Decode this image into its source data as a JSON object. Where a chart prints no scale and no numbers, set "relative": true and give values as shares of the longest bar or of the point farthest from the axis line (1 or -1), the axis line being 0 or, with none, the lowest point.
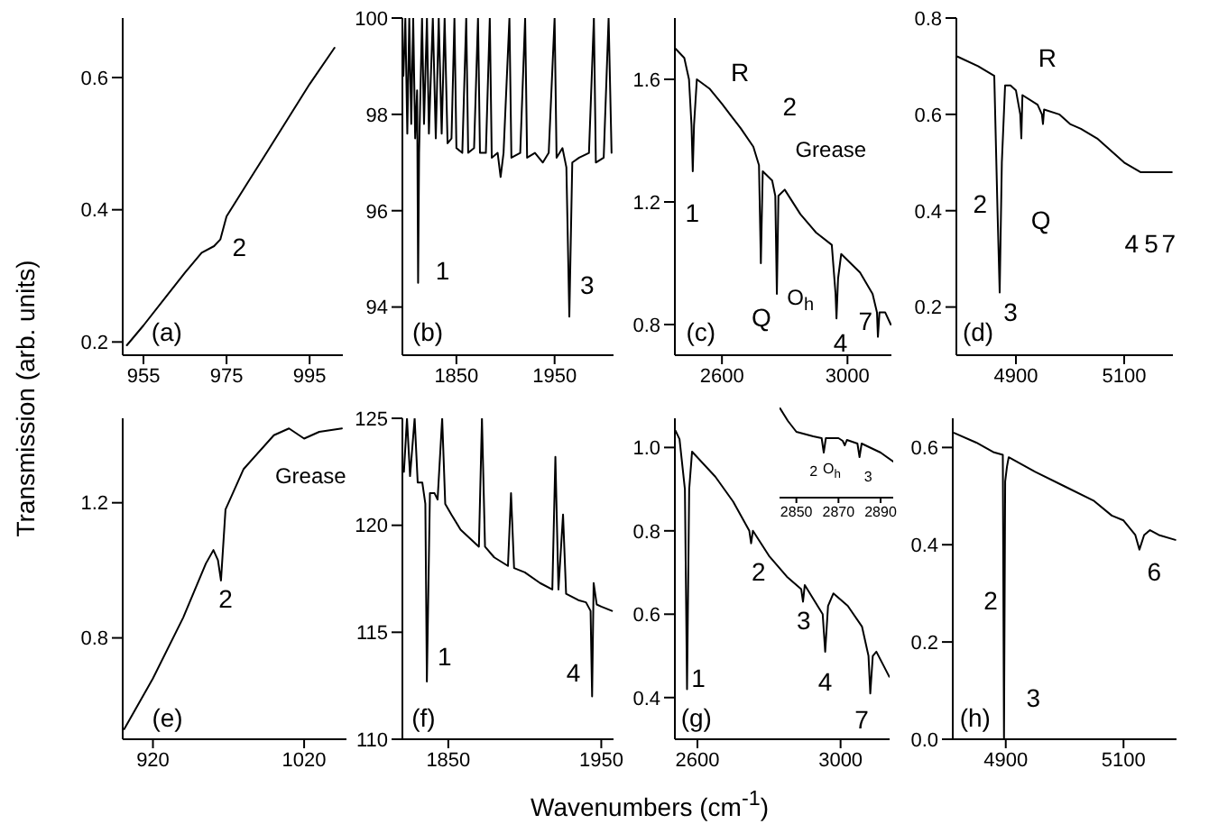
{
  "chart_data": [
    {
      "type": "line",
      "color": "#000000",
      "ylabel": "Transmission (arb. units)",
      "xlim": [
        950,
        1003
      ],
      "xticks": [
        955,
        975,
        995
      ],
      "ylim": [
        0.18,
        0.69
      ],
      "yticks": [
        0.2,
        0.4,
        0.6
      ],
      "x": [
        951,
        955,
        960,
        965,
        969,
        972,
        973.5,
        975,
        980,
        985,
        990,
        995,
        1001
      ],
      "values": [
        0.195,
        0.225,
        0.265,
        0.305,
        0.335,
        0.345,
        0.355,
        0.39,
        0.44,
        0.49,
        0.54,
        0.59,
        0.645
      ],
      "annotations": [
        "(a)",
        "2"
      ]
    },
    {
      "type": "line",
      "color": "#000000",
      "xlim": [
        1795,
        2010
      ],
      "xticks": [
        1850,
        1950
      ],
      "ylim": [
        93,
        100
      ],
      "yticks": [
        94,
        96,
        98,
        100
      ],
      "x": [
        1796,
        1798,
        1800,
        1802,
        1804,
        1806,
        1808,
        1810,
        1811,
        1812,
        1815,
        1817,
        1820,
        1822,
        1826,
        1829,
        1832,
        1835,
        1838,
        1841,
        1845,
        1848,
        1850,
        1856,
        1860,
        1862,
        1868,
        1872,
        1874,
        1880,
        1884,
        1886,
        1892,
        1895,
        1898,
        1904,
        1906,
        1915,
        1920,
        1922,
        1930,
        1938,
        1944,
        1950,
        1952,
        1958,
        1962,
        1965,
        1968,
        1975,
        1985,
        1990,
        1992,
        2000,
        2005,
        2008
      ],
      "values": [
        98.8,
        100,
        97.6,
        100,
        97.8,
        100,
        97.5,
        98.5,
        94.5,
        97.2,
        100,
        97.8,
        100,
        97.6,
        100,
        97.5,
        100,
        97.6,
        100,
        97.4,
        97.5,
        100,
        97.3,
        97.2,
        100,
        97.2,
        97.3,
        100,
        97.2,
        97.2,
        100,
        97.1,
        97.2,
        96.7,
        97.2,
        100,
        97.1,
        97.2,
        100,
        97.1,
        97.2,
        97.0,
        97.2,
        100,
        97.1,
        97.3,
        96.9,
        93.8,
        97.0,
        97.1,
        97.2,
        100,
        97.0,
        97.1,
        100,
        97.2
      ],
      "annotations": [
        "(b)",
        "1",
        "3"
      ]
    },
    {
      "type": "line",
      "color": "#000000",
      "xlim": [
        2450,
        3140
      ],
      "xticks": [
        2600,
        3000
      ],
      "ylim": [
        0.7,
        1.8
      ],
      "yticks": [
        0.8,
        1.2,
        1.6
      ],
      "x": [
        2452,
        2480,
        2495,
        2503,
        2507,
        2511,
        2520,
        2560,
        2600,
        2630,
        2660,
        2700,
        2718,
        2724,
        2730,
        2760,
        2770,
        2775,
        2780,
        2800,
        2850,
        2900,
        2950,
        2962,
        2965,
        2970,
        2980,
        3040,
        3080,
        3094,
        3097,
        3102,
        3120,
        3138
      ],
      "values": [
        1.7,
        1.67,
        1.6,
        1.45,
        1.3,
        1.45,
        1.6,
        1.57,
        1.52,
        1.48,
        1.44,
        1.38,
        1.32,
        1.0,
        1.3,
        1.27,
        1.22,
        0.9,
        1.22,
        1.24,
        1.16,
        1.1,
        1.06,
        0.9,
        0.82,
        0.95,
        1.03,
        0.97,
        0.9,
        0.84,
        0.76,
        0.84,
        0.84,
        0.8
      ],
      "annotations": [
        "(c)",
        "1",
        "R",
        "2",
        "Grease",
        "Q",
        "O$_{h}$",
        "4",
        "7"
      ]
    },
    {
      "type": "line",
      "color": "#000000",
      "xlim": [
        4790,
        5190
      ],
      "xticks": [
        4900,
        5100
      ],
      "ylim": [
        0.1,
        0.8
      ],
      "yticks": [
        0.2,
        0.4,
        0.6,
        0.8
      ],
      "x": [
        4792,
        4830,
        4860,
        4866,
        4870,
        4874,
        4880,
        4890,
        4900,
        4908,
        4910,
        4912,
        4940,
        4948,
        4950,
        4952,
        4980,
        5000,
        5020,
        5050,
        5100,
        5130,
        5150,
        5188
      ],
      "values": [
        0.72,
        0.7,
        0.68,
        0.4,
        0.23,
        0.5,
        0.66,
        0.66,
        0.65,
        0.6,
        0.55,
        0.64,
        0.62,
        0.6,
        0.58,
        0.61,
        0.6,
        0.58,
        0.57,
        0.55,
        0.5,
        0.48,
        0.48,
        0.48
      ],
      "annotations": [
        "(d)",
        "R",
        "Q",
        "2",
        "3",
        "4",
        "5",
        "7"
      ]
    },
    {
      "type": "line",
      "color": "#000000",
      "xlim": [
        900,
        1048
      ],
      "xticks": [
        920,
        1020
      ],
      "ylim": [
        0.5,
        1.45
      ],
      "yticks": [
        0.8,
        1.2
      ],
      "x": [
        901,
        920,
        940,
        955,
        960,
        963,
        965,
        968,
        980,
        1000,
        1010,
        1020,
        1030,
        1045
      ],
      "values": [
        0.53,
        0.68,
        0.86,
        1.02,
        1.06,
        1.03,
        0.97,
        1.18,
        1.3,
        1.4,
        1.42,
        1.39,
        1.41,
        1.42
      ],
      "annotations": [
        "(e)",
        "2",
        "Grease"
      ]
    },
    {
      "type": "line",
      "color": "#000000",
      "xlabel": "Wavenumbers (cm$^{-1}$)",
      "xlim": [
        1820,
        1958
      ],
      "xticks": [
        1850,
        1950
      ],
      "ylim": [
        110,
        125
      ],
      "yticks": [
        110,
        115,
        120,
        125
      ],
      "x": [
        1821,
        1823,
        1825,
        1828,
        1830,
        1833,
        1835,
        1836,
        1838,
        1841,
        1843,
        1846,
        1848,
        1852,
        1858,
        1870,
        1872,
        1874,
        1880,
        1889,
        1891,
        1893,
        1900,
        1910,
        1918,
        1920,
        1922,
        1925,
        1927,
        1935,
        1940,
        1943,
        1944,
        1945,
        1947,
        1950,
        1957
      ],
      "values": [
        122.5,
        125,
        122.3,
        125,
        122,
        122,
        121,
        112.7,
        121.5,
        121.5,
        121.2,
        125,
        121,
        120.5,
        119.8,
        119,
        125,
        119,
        118.5,
        118.1,
        121.5,
        118,
        117.8,
        117.3,
        117,
        123.2,
        117,
        120.5,
        116.8,
        116.5,
        116.4,
        116,
        112,
        117.3,
        116.3,
        116.2,
        116
      ],
      "annotations": [
        "(f)",
        "1",
        "4"
      ]
    },
    {
      "type": "line",
      "color": "#000000",
      "xlim": [
        2537,
        3137
      ],
      "xticks": [
        2600,
        3000
      ],
      "ylim": [
        0.3,
        1.07
      ],
      "yticks": [
        0.4,
        0.6,
        0.8,
        {
          "value": 1,
          "label": "1.0"
        }
      ],
      "x": [
        2539,
        2550,
        2565,
        2571,
        2577,
        2585,
        2650,
        2700,
        2745,
        2750,
        2755,
        2800,
        2850,
        2890,
        2895,
        2900,
        2950,
        2957,
        2965,
        2980,
        3020,
        3060,
        3078,
        3083,
        3090,
        3100,
        3136
      ],
      "values": [
        1.04,
        1.02,
        0.9,
        0.42,
        0.9,
        0.99,
        0.93,
        0.87,
        0.8,
        0.77,
        0.8,
        0.74,
        0.69,
        0.66,
        0.63,
        0.67,
        0.6,
        0.51,
        0.62,
        0.65,
        0.62,
        0.57,
        0.5,
        0.41,
        0.5,
        0.51,
        0.45
      ],
      "annotations": [
        "(g)",
        "1",
        "2",
        "3",
        "4",
        "7"
      ]
    },
    {
      "type": "line",
      "color": "#000000",
      "relative": true,
      "tick_labels": "x",
      "xlim": [
        2842,
        2896
      ],
      "xticks": [
        2850,
        2870,
        2890
      ],
      "x": [
        2842,
        2846,
        2850,
        2858,
        2862,
        2863,
        2864,
        2870,
        2872,
        2873,
        2874,
        2879,
        2880,
        2881,
        2890,
        2896
      ],
      "values": [
        1.0,
        0.85,
        0.73,
        0.68,
        0.66,
        0.5,
        0.66,
        0.66,
        0.63,
        0.58,
        0.64,
        0.6,
        0.45,
        0.6,
        0.5,
        0.4
      ],
      "annotations": [
        "2",
        "O$_{h}$",
        "3"
      ]
    },
    {
      "type": "line",
      "color": "#000000",
      "xlim": [
        4810,
        5190
      ],
      "xticks": [
        4900,
        5100
      ],
      "ylim": [
        0,
        0.66
      ],
      "yticks": [
        {
          "value": 0,
          "label": "0.0"
        },
        0.2,
        0.4,
        0.6
      ],
      "x": [
        4812,
        4850,
        4880,
        4895,
        4897,
        4899,
        4902,
        4905,
        4950,
        5000,
        5050,
        5080,
        5100,
        5120,
        5127,
        5135,
        5145,
        5160,
        5188
      ],
      "values": [
        0.63,
        0.61,
        0.59,
        0.585,
        0.0,
        0.53,
        0.56,
        0.58,
        0.55,
        0.52,
        0.49,
        0.46,
        0.45,
        0.42,
        0.39,
        0.42,
        0.43,
        0.42,
        0.41
      ],
      "annotations": [
        "(h)",
        "2",
        "3",
        "6"
      ]
    }
  ]
}
